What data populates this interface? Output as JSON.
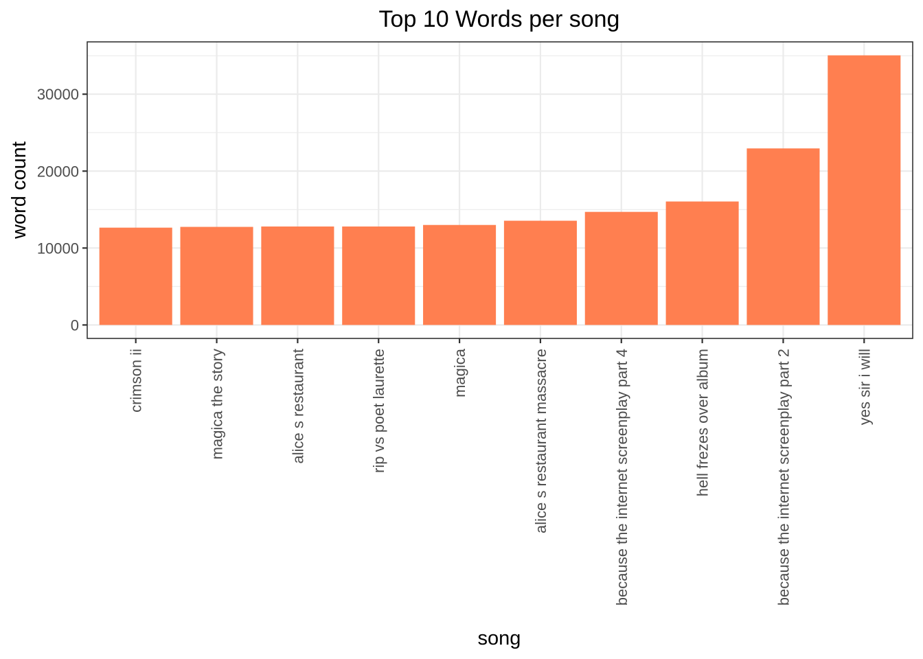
{
  "chart_data": {
    "type": "bar",
    "title": "Top 10 Words per song",
    "xlabel": "song",
    "ylabel": "word count",
    "categories": [
      "crimson ii",
      "magica the story",
      "alice s restaurant",
      "rip vs poet laurette",
      "magica",
      "alice s restaurant massacre",
      "because the internet screenplay part 4",
      "hell frezes over album",
      "because the internet screenplay part 2",
      "yes sir i will"
    ],
    "values": [
      12650,
      12750,
      12800,
      12800,
      13000,
      13550,
      14700,
      16050,
      22950,
      35050
    ],
    "yticks": [
      0,
      10000,
      20000,
      30000
    ],
    "ytick_labels": [
      "0",
      "10000",
      "20000",
      "30000"
    ],
    "ylim": [
      -1750,
      36800
    ],
    "grid": true,
    "bar_color": "#ff7f50",
    "theme": "bw"
  }
}
